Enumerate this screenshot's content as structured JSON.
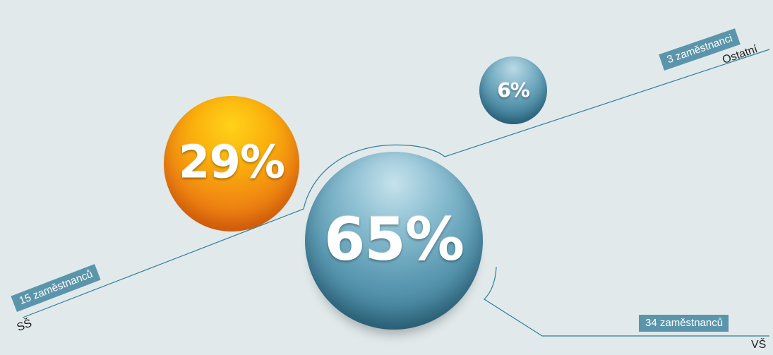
{
  "chart_data": {
    "type": "bubble",
    "title": "",
    "series": [
      {
        "category": "SŠ",
        "percent": 29,
        "percent_label": "29%",
        "count_label": "15 zaměstnanců",
        "color": "#f28a16"
      },
      {
        "category": "VŠ",
        "percent": 65,
        "percent_label": "65%",
        "count_label": "34 zaměstnanců",
        "color": "#5a9ab2"
      },
      {
        "category": "Ostatní",
        "percent": 6,
        "percent_label": "6%",
        "count_label": "3 zaměstnanci",
        "color": "#5a9ab2"
      }
    ],
    "line_color": "#2f7f98",
    "tag_color": "#5b95ab",
    "background": "#e1e9eb"
  }
}
